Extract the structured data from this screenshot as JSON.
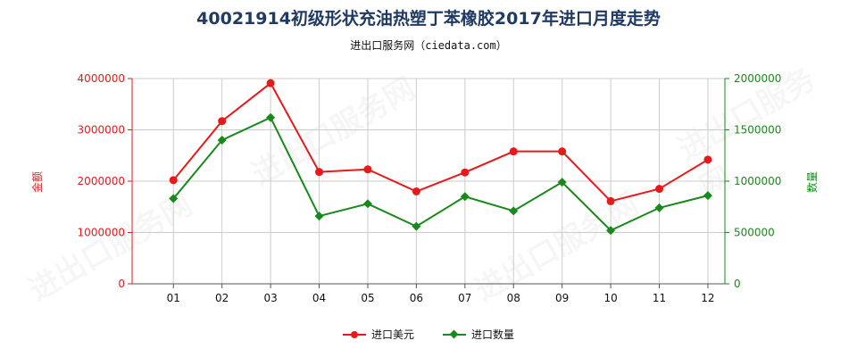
{
  "title": "40021914初级形状充油热塑丁苯橡胶2017年进口月度走势",
  "subtitle": "进出口服务网（ciedata.com）",
  "colors": {
    "amount": "#e8191b",
    "quantity": "#178a1a",
    "grid": "#cccccc",
    "axis": "#555555"
  },
  "chart_data": {
    "type": "line",
    "title": "40021914初级形状充油热塑丁苯橡胶2017年进口月度走势",
    "subtitle": "进出口服务网（ciedata.com）",
    "categories": [
      "01",
      "02",
      "03",
      "04",
      "05",
      "06",
      "07",
      "08",
      "09",
      "10",
      "11",
      "12"
    ],
    "y_left": {
      "label": "金额",
      "ylim": [
        0,
        4000000
      ],
      "ticks": [
        0,
        1000000,
        2000000,
        3000000,
        4000000
      ],
      "tick_labels": [
        "0",
        "1000000",
        "2000000",
        "3000000",
        "4000000"
      ]
    },
    "y_right": {
      "label": "数量",
      "ylim": [
        0,
        2000000
      ],
      "ticks": [
        0,
        500000,
        1000000,
        1500000,
        2000000
      ],
      "tick_labels": [
        "0",
        "500000",
        "1000000",
        "1500000",
        "2000000"
      ]
    },
    "series": [
      {
        "name": "进口美元",
        "axis": "left",
        "marker": "circle",
        "color": "#e8191b",
        "values": [
          2020000,
          3170000,
          3910000,
          2180000,
          2230000,
          1800000,
          2170000,
          2580000,
          2580000,
          1610000,
          1850000,
          2420000
        ]
      },
      {
        "name": "进口数量",
        "axis": "right",
        "marker": "diamond",
        "color": "#178a1a",
        "values": [
          830000,
          1400000,
          1620000,
          660000,
          780000,
          560000,
          850000,
          710000,
          990000,
          520000,
          740000,
          860000
        ]
      }
    ],
    "grid": true,
    "legend_position": "bottom-center"
  }
}
